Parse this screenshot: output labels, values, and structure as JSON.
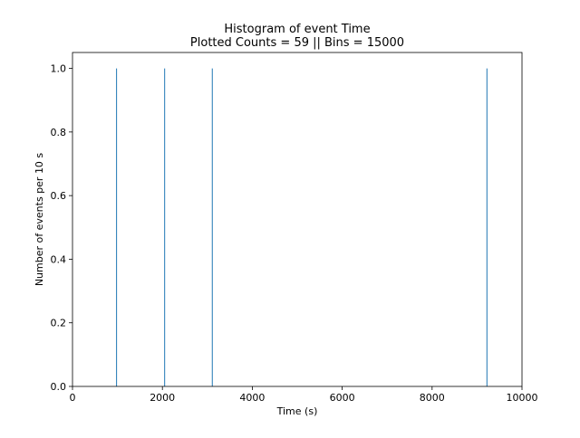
{
  "chart_data": {
    "type": "bar",
    "title_line1": "Histogram of event Time",
    "title_line2": "Plotted Counts = 59 || Bins = 15000",
    "xlabel": "Time (s)",
    "ylabel": "Number of events per 10 s",
    "xlim": [
      0,
      10000
    ],
    "ylim": [
      0,
      1.05
    ],
    "x_ticks": [
      0,
      2000,
      4000,
      6000,
      8000,
      10000
    ],
    "x_tick_labels": [
      "0",
      "2000",
      "4000",
      "6000",
      "8000",
      "10000"
    ],
    "y_ticks": [
      0.0,
      0.2,
      0.4,
      0.6,
      0.8,
      1.0
    ],
    "y_tick_labels": [
      "0.0",
      "0.2",
      "0.4",
      "0.6",
      "0.8",
      "1.0"
    ],
    "grid": false,
    "legend": "none",
    "bar_color": "#1f77b4",
    "series": [
      {
        "x": [
          980,
          2050,
          3110,
          9220
        ],
        "values": [
          1,
          1,
          1,
          1
        ]
      }
    ]
  }
}
